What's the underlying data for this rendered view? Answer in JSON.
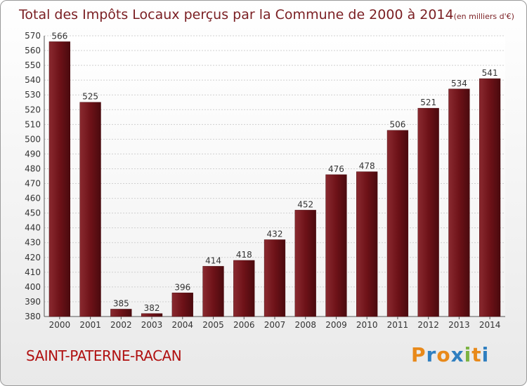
{
  "chart_data": {
    "type": "bar",
    "title": "Total des Impôts Locaux perçus par la Commune de 2000 à 2014",
    "title_unit": "(en milliers d'€)",
    "categories": [
      "2000",
      "2001",
      "2002",
      "2003",
      "2004",
      "2005",
      "2006",
      "2007",
      "2008",
      "2009",
      "2010",
      "2011",
      "2012",
      "2013",
      "2014"
    ],
    "values": [
      566,
      525,
      385,
      382,
      396,
      414,
      418,
      432,
      452,
      476,
      478,
      506,
      521,
      534,
      541
    ],
    "ylim": [
      380,
      570
    ],
    "ytick_step": 10,
    "grid": true,
    "bar_color": "#6e0f14",
    "xlabel": "",
    "ylabel": ""
  },
  "commune": "SAINT-PATERNE-RACAN",
  "logo": {
    "letters": [
      "P",
      "r",
      "o",
      "x",
      "i",
      "t",
      "i"
    ],
    "colors": [
      "#e8891a",
      "#2f7fc0",
      "#e8891a",
      "#2f7fc0",
      "#7cb342",
      "#e8891a",
      "#2f7fc0"
    ]
  }
}
